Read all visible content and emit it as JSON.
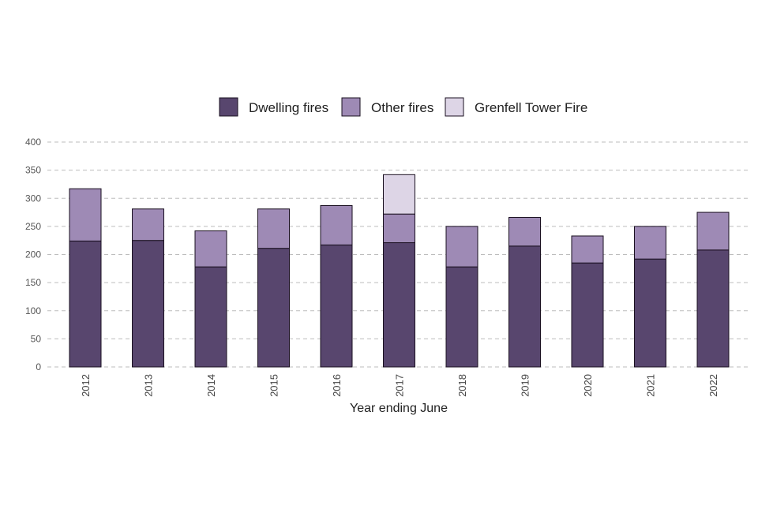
{
  "chart_data": {
    "type": "bar",
    "stacked": true,
    "title": "",
    "xlabel": "Year ending June",
    "ylabel": "",
    "ylim": [
      0,
      400
    ],
    "yticks": [
      0,
      50,
      100,
      150,
      200,
      250,
      300,
      350,
      400
    ],
    "grid": "horizontal dashed",
    "legend_position": "top",
    "categories": [
      "2012",
      "2013",
      "2014",
      "2015",
      "2016",
      "2017",
      "2018",
      "2019",
      "2020",
      "2021",
      "2022"
    ],
    "series": [
      {
        "name": "Dwelling fires",
        "color": "#58466e",
        "values": [
          224,
          225,
          178,
          211,
          217,
          221,
          178,
          215,
          185,
          192,
          208
        ]
      },
      {
        "name": "Other fires",
        "color": "#9e8ab5",
        "values": [
          93,
          56,
          64,
          70,
          70,
          51,
          72,
          51,
          48,
          58,
          67
        ]
      },
      {
        "name": "Grenfell Tower Fire",
        "color": "#ddd5e6",
        "values": [
          0,
          0,
          0,
          0,
          0,
          70,
          0,
          0,
          0,
          0,
          0
        ]
      }
    ]
  }
}
